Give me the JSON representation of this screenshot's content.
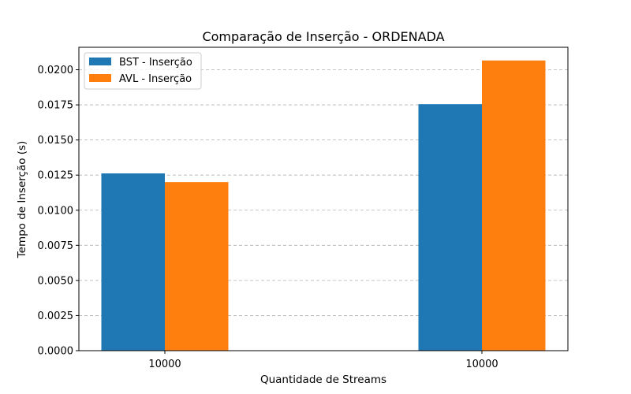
{
  "chart_data": {
    "type": "bar",
    "title": "Comparação de Inserção - ORDENADA",
    "xlabel": "Quantidade de Streams",
    "ylabel": "Tempo de Inserção (s)",
    "categories": [
      "10000",
      "10000"
    ],
    "series": [
      {
        "name": "BST - Inserção",
        "color": "#1f77b4",
        "values": [
          0.01262,
          0.01755
        ]
      },
      {
        "name": "AVL - Inserção",
        "color": "#ff7f0e",
        "values": [
          0.012,
          0.02066
        ]
      }
    ],
    "ylim": [
      0,
      0.0216
    ],
    "yticks": [
      "0.0000",
      "0.0025",
      "0.0050",
      "0.0075",
      "0.0100",
      "0.0125",
      "0.0150",
      "0.0175",
      "0.0200"
    ],
    "grid": true,
    "grid_style": "dashed",
    "legend_position": "top-left"
  }
}
